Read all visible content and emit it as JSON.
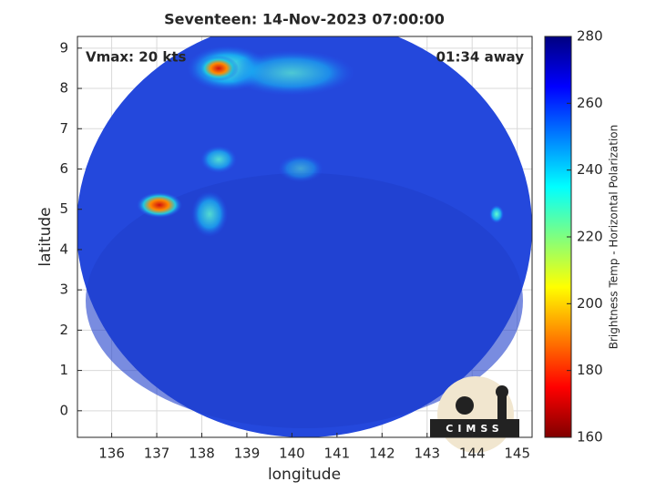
{
  "chart_data": {
    "type": "image",
    "title": "Seventeen: 14-Nov-2023 07:00:00",
    "x_label": "longitude",
    "y_label": "latitude",
    "annotations": [
      "Vmax: 20 kts",
      "01:34 away"
    ],
    "logo": "CIMSS",
    "xlim": [
      135.24,
      145.33
    ],
    "xticks": [
      136,
      137,
      138,
      139,
      140,
      141,
      142,
      143,
      144,
      145
    ],
    "ylim": [
      -0.66,
      9.29
    ],
    "yticks": [
      0,
      1,
      2,
      3,
      4,
      5,
      6,
      7,
      8,
      9
    ],
    "grid": true,
    "colorbar": {
      "label": "Brightness Temp - Horizontal Polarization",
      "lim": [
        160,
        280
      ],
      "ticks": [
        160,
        180,
        200,
        220,
        240,
        260,
        280
      ],
      "colormap": "jet"
    }
  }
}
